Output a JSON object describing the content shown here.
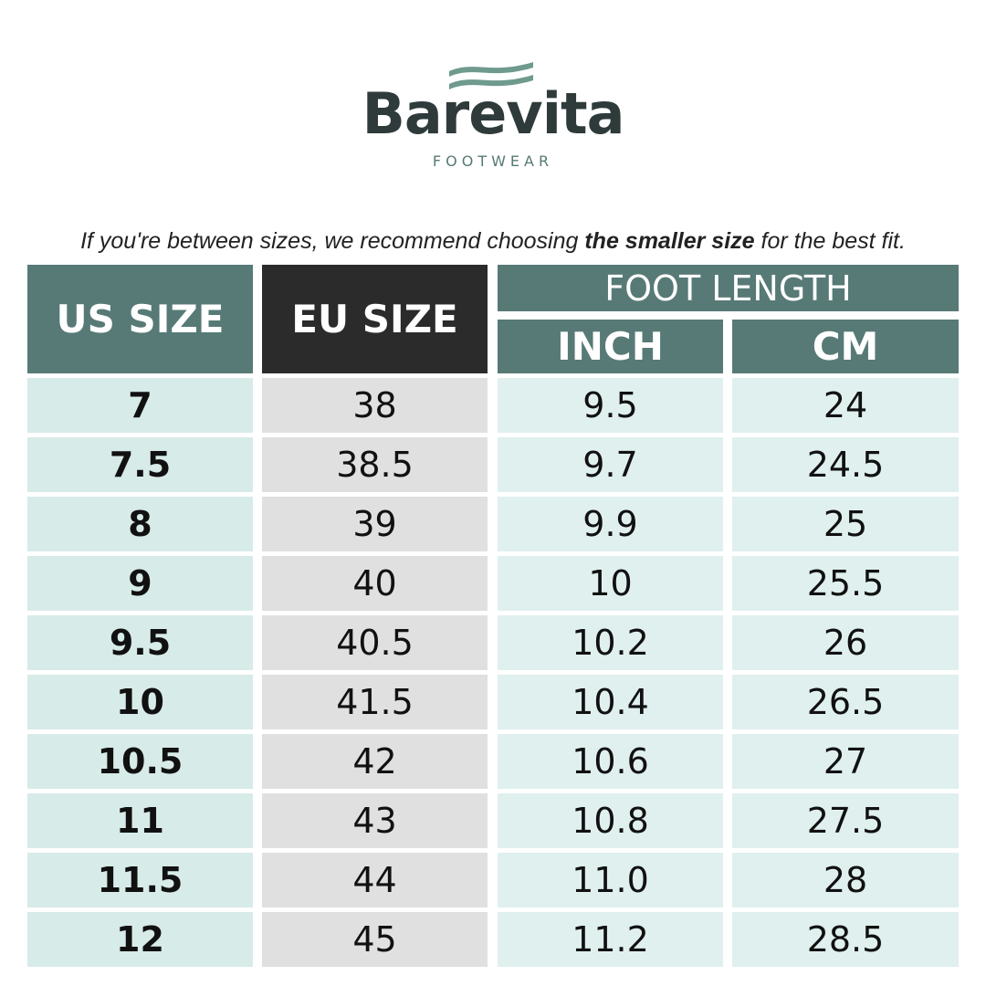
{
  "logo": {
    "name": "Barevita",
    "tagline": "FOOTWEAR"
  },
  "note": [
    "If you're between sizes, we recommend choosing ",
    "the smaller size",
    " for the best fit."
  ],
  "table": {
    "header": {
      "us_size": "US SIZE",
      "eu_size": "EU SIZE",
      "foot_length": "FOOT LENGTH",
      "inch": "INCH",
      "cm": "CM"
    },
    "rows": [
      [
        "7",
        "38",
        "9.5",
        "24"
      ],
      [
        "7.5",
        "38.5",
        "9.7",
        "24.5"
      ],
      [
        "8",
        "39",
        "9.9",
        "25"
      ],
      [
        "9",
        "40",
        "10",
        "25.5"
      ],
      [
        "9.5",
        "40.5",
        "10.2",
        "26"
      ],
      [
        "10",
        "41.5",
        "10.4",
        "26.5"
      ],
      [
        "10.5",
        "42",
        "10.6",
        "27"
      ],
      [
        "11",
        "43",
        "10.8",
        "27.5"
      ],
      [
        "11.5",
        "44",
        "11.0",
        "28"
      ],
      [
        "12",
        "45",
        "11.2",
        "28.5"
      ]
    ]
  }
}
